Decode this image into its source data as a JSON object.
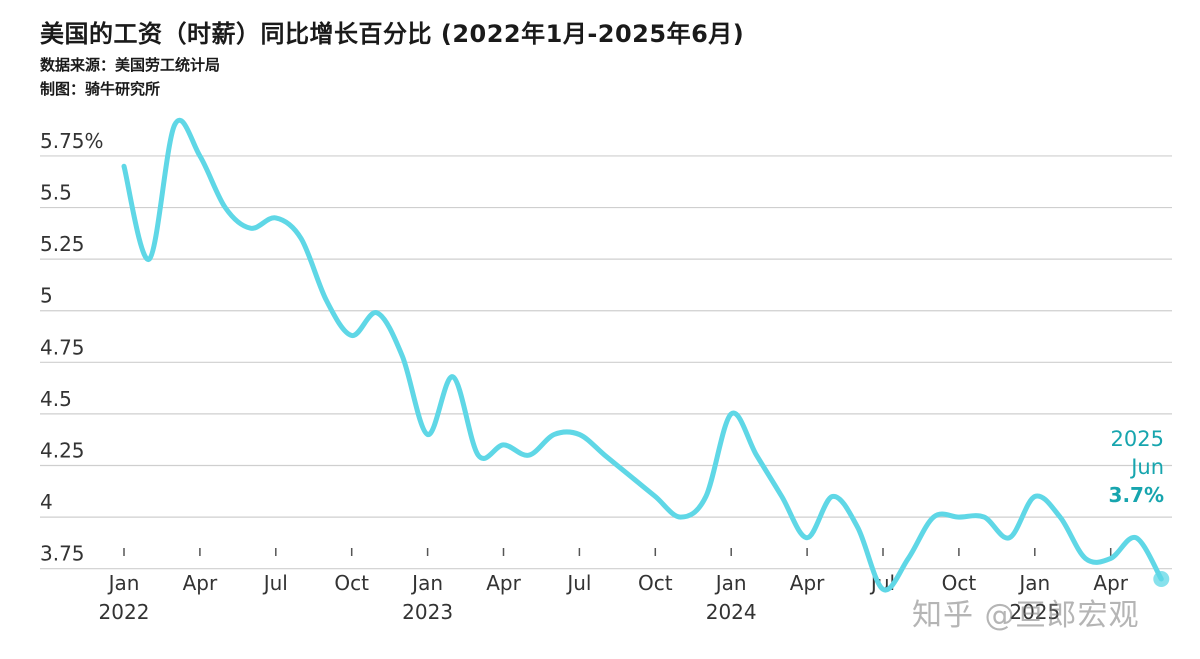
{
  "header": {
    "title": "美国的工资（时薪）同比增长百分比 (2022年1月-2025年6月)",
    "source": "数据来源：美国劳工统计局",
    "credit": "制图：骑牛研究所"
  },
  "watermark": "知乎 @亘郎宏观",
  "colors": {
    "line": "#5fd7e6",
    "end_label": "#17a5ae",
    "grid": "#cfcfcf",
    "axis_text": "#333333"
  },
  "chart_data": {
    "type": "line",
    "title": "美国的工资（时薪）同比增长百分比 (2022年1月-2025年6月)",
    "xlabel": "",
    "ylabel": "",
    "ylim": [
      3.7,
      5.9
    ],
    "y_ticks": [
      {
        "value": 5.75,
        "label": "5.75%"
      },
      {
        "value": 5.5,
        "label": "5.5"
      },
      {
        "value": 5.25,
        "label": "5.25"
      },
      {
        "value": 5.0,
        "label": "5"
      },
      {
        "value": 4.75,
        "label": "4.75"
      },
      {
        "value": 4.5,
        "label": "4.5"
      },
      {
        "value": 4.25,
        "label": "4.25"
      },
      {
        "value": 4.0,
        "label": "4"
      },
      {
        "value": 3.75,
        "label": "3.75"
      }
    ],
    "x_ticks": [
      {
        "month": 0,
        "label": "Jan",
        "year": "2022"
      },
      {
        "month": 3,
        "label": "Apr",
        "year": ""
      },
      {
        "month": 6,
        "label": "Jul",
        "year": ""
      },
      {
        "month": 9,
        "label": "Oct",
        "year": ""
      },
      {
        "month": 12,
        "label": "Jan",
        "year": "2023"
      },
      {
        "month": 15,
        "label": "Apr",
        "year": ""
      },
      {
        "month": 18,
        "label": "Jul",
        "year": ""
      },
      {
        "month": 21,
        "label": "Oct",
        "year": ""
      },
      {
        "month": 24,
        "label": "Jan",
        "year": "2024"
      },
      {
        "month": 27,
        "label": "Apr",
        "year": ""
      },
      {
        "month": 30,
        "label": "Jul",
        "year": ""
      },
      {
        "month": 33,
        "label": "Oct",
        "year": ""
      },
      {
        "month": 36,
        "label": "Jan",
        "year": "2025"
      },
      {
        "month": 39,
        "label": "Apr",
        "year": ""
      }
    ],
    "grid": true,
    "series": [
      {
        "x": [
          "2022-01",
          "2022-02",
          "2022-03",
          "2022-04",
          "2022-05",
          "2022-06",
          "2022-07",
          "2022-08",
          "2022-09",
          "2022-10",
          "2022-11",
          "2022-12",
          "2023-01",
          "2023-02",
          "2023-03",
          "2023-04",
          "2023-05",
          "2023-06",
          "2023-07",
          "2023-08",
          "2023-09",
          "2023-10",
          "2023-11",
          "2023-12",
          "2024-01",
          "2024-02",
          "2024-03",
          "2024-04",
          "2024-05",
          "2024-06",
          "2024-07",
          "2024-08",
          "2024-09",
          "2024-10",
          "2024-11",
          "2024-12",
          "2025-01",
          "2025-02",
          "2025-03",
          "2025-04",
          "2025-05",
          "2025-06"
        ],
        "values": [
          5.7,
          5.25,
          5.9,
          5.75,
          5.5,
          5.4,
          5.45,
          5.35,
          5.05,
          4.88,
          4.99,
          4.78,
          4.4,
          4.68,
          4.3,
          4.35,
          4.3,
          4.4,
          4.4,
          4.3,
          4.2,
          4.1,
          4.0,
          4.1,
          4.5,
          4.3,
          4.1,
          3.9,
          4.1,
          3.95,
          3.65,
          3.8,
          4.0,
          4.0,
          4.0,
          3.9,
          4.1,
          4.0,
          3.8,
          3.8,
          3.9,
          3.7
        ]
      }
    ],
    "annotation": {
      "year": "2025",
      "month": "Jun",
      "value": "3.7%"
    }
  }
}
